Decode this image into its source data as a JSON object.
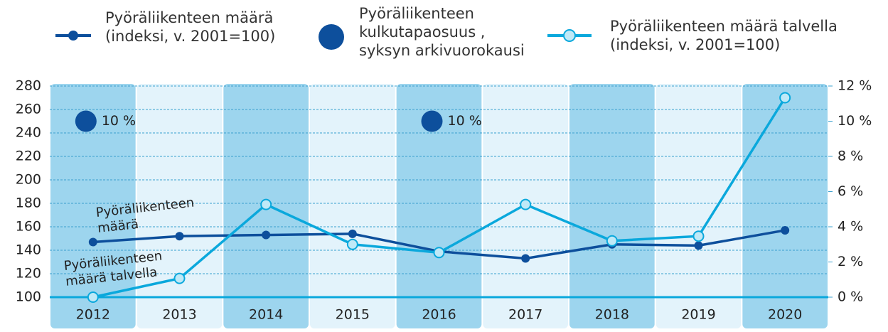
{
  "chart_data": {
    "type": "line",
    "categories": [
      "2012",
      "2013",
      "2014",
      "2015",
      "2016",
      "2017",
      "2018",
      "2019",
      "2020"
    ],
    "series": [
      {
        "name": "Pyöräliikenteen määrä\n(indeksi, v. 2001=100)",
        "color": "#0d4f9c",
        "values": [
          147,
          152,
          153,
          154,
          139,
          133,
          145,
          144,
          157
        ]
      },
      {
        "name": "Pyöräliikenteen\nkulkutapaosuus ,\nsyksyn arkivuorokausi",
        "color": "#0d4f9c",
        "type": "bubble",
        "axis": "y2",
        "values": [
          10,
          null,
          null,
          null,
          10,
          null,
          null,
          null,
          null
        ],
        "value_labels": [
          "10 %",
          null,
          null,
          null,
          "10 %",
          null,
          null,
          null,
          null
        ]
      },
      {
        "name": "Pyöräliikenteen määrä talvella\n(indeksi, v. 2001=100)",
        "color": "#0aa8dc",
        "values": [
          100,
          116,
          179,
          145,
          138,
          179,
          148,
          152,
          270
        ]
      }
    ],
    "annotations": [
      "Pyöräliikenteen\nmäärä",
      "Pyöräliikenteen\nmäärä  talvella"
    ],
    "ylim": [
      100,
      280
    ],
    "yticks": [
      100,
      120,
      140,
      160,
      180,
      200,
      220,
      240,
      260,
      280
    ],
    "y2lim": [
      0,
      12
    ],
    "y2ticks": [
      {
        "value": 0,
        "label": "0 %"
      },
      {
        "value": 2,
        "label": "2 %"
      },
      {
        "value": 4,
        "label": "4 %"
      },
      {
        "value": 6,
        "label": "6 %"
      },
      {
        "value": 8,
        "label": "8 %"
      },
      {
        "value": 10,
        "label": "10 %"
      },
      {
        "value": 12,
        "label": "12 %"
      }
    ],
    "grid": true
  }
}
